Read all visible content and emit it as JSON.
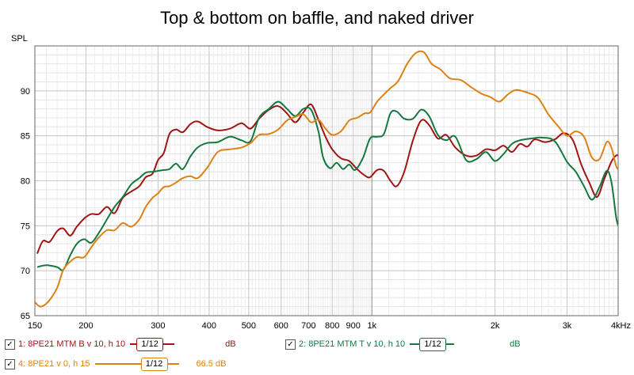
{
  "chart_data": {
    "type": "line",
    "title": "Top & bottom on baffle, and naked driver",
    "ylabel": "SPL",
    "xscale": "log",
    "xlim": [
      150,
      4000
    ],
    "ylim": [
      65,
      95
    ],
    "x_ticks": [
      {
        "value": 150,
        "label": "150"
      },
      {
        "value": 200,
        "label": "200"
      },
      {
        "value": 300,
        "label": "300"
      },
      {
        "value": 400,
        "label": "400"
      },
      {
        "value": 500,
        "label": "500"
      },
      {
        "value": 600,
        "label": "600"
      },
      {
        "value": 700,
        "label": "700"
      },
      {
        "value": 800,
        "label": "800"
      },
      {
        "value": 900,
        "label": "900"
      },
      {
        "value": 1000,
        "label": "1k"
      },
      {
        "value": 2000,
        "label": "2k"
      },
      {
        "value": 3000,
        "label": "3k"
      },
      {
        "value": 4000,
        "label": "4kHz"
      }
    ],
    "y_ticks": [
      65,
      70,
      75,
      80,
      85,
      90
    ],
    "grid": true,
    "series": [
      {
        "name": "1: 8PE21 MTM B v 10, h 10",
        "smoothing": "1/12",
        "offset": "dB",
        "color": "#a01414",
        "points": [
          [
            152,
            71.9
          ],
          [
            157,
            73.3
          ],
          [
            163,
            73.2
          ],
          [
            170,
            74.4
          ],
          [
            176,
            74.7
          ],
          [
            183,
            73.9
          ],
          [
            190,
            74.9
          ],
          [
            198,
            75.8
          ],
          [
            206,
            76.3
          ],
          [
            215,
            76.3
          ],
          [
            225,
            77.1
          ],
          [
            235,
            76.4
          ],
          [
            246,
            78.1
          ],
          [
            258,
            78.8
          ],
          [
            270,
            79.4
          ],
          [
            280,
            80.4
          ],
          [
            291,
            80.8
          ],
          [
            300,
            82.3
          ],
          [
            310,
            83.1
          ],
          [
            320,
            85.2
          ],
          [
            332,
            85.7
          ],
          [
            345,
            85.4
          ],
          [
            360,
            86.3
          ],
          [
            375,
            86.6
          ],
          [
            395,
            86.0
          ],
          [
            420,
            85.6
          ],
          [
            450,
            85.8
          ],
          [
            480,
            86.4
          ],
          [
            505,
            85.8
          ],
          [
            530,
            86.9
          ],
          [
            560,
            87.9
          ],
          [
            590,
            88.3
          ],
          [
            620,
            87.5
          ],
          [
            650,
            86.5
          ],
          [
            680,
            87.6
          ],
          [
            710,
            88.5
          ],
          [
            740,
            86.8
          ],
          [
            770,
            84.9
          ],
          [
            800,
            83.5
          ],
          [
            840,
            82.5
          ],
          [
            880,
            82.2
          ],
          [
            920,
            81.3
          ],
          [
            960,
            80.6
          ],
          [
            990,
            80.4
          ],
          [
            1030,
            81.2
          ],
          [
            1070,
            81.1
          ],
          [
            1110,
            80.0
          ],
          [
            1150,
            79.4
          ],
          [
            1200,
            81.0
          ],
          [
            1260,
            84.5
          ],
          [
            1320,
            86.7
          ],
          [
            1380,
            86.2
          ],
          [
            1450,
            84.7
          ],
          [
            1520,
            85.1
          ],
          [
            1600,
            83.7
          ],
          [
            1700,
            82.8
          ],
          [
            1800,
            82.8
          ],
          [
            1900,
            83.5
          ],
          [
            2000,
            83.4
          ],
          [
            2100,
            83.9
          ],
          [
            2200,
            83.2
          ],
          [
            2300,
            84.1
          ],
          [
            2400,
            83.8
          ],
          [
            2500,
            84.6
          ],
          [
            2650,
            84.3
          ],
          [
            2800,
            84.6
          ],
          [
            2950,
            85.3
          ],
          [
            3100,
            84.5
          ],
          [
            3250,
            81.8
          ],
          [
            3400,
            79.8
          ],
          [
            3550,
            78.2
          ],
          [
            3700,
            80.2
          ],
          [
            3850,
            82.1
          ],
          [
            3950,
            82.8
          ],
          [
            4000,
            82.8
          ]
        ]
      },
      {
        "name": "2: 8PE21 MTM T v 10, h 10",
        "smoothing": "1/12",
        "offset": "dB",
        "color": "#147840",
        "points": [
          [
            152,
            70.4
          ],
          [
            160,
            70.6
          ],
          [
            170,
            70.4
          ],
          [
            176,
            70.1
          ],
          [
            183,
            71.7
          ],
          [
            190,
            73.0
          ],
          [
            198,
            73.5
          ],
          [
            206,
            73.1
          ],
          [
            215,
            74.2
          ],
          [
            225,
            75.7
          ],
          [
            235,
            77.1
          ],
          [
            246,
            78.2
          ],
          [
            258,
            79.6
          ],
          [
            270,
            80.3
          ],
          [
            280,
            80.9
          ],
          [
            291,
            81.0
          ],
          [
            300,
            81.1
          ],
          [
            310,
            81.2
          ],
          [
            320,
            81.3
          ],
          [
            332,
            81.9
          ],
          [
            345,
            81.3
          ],
          [
            360,
            82.7
          ],
          [
            375,
            83.7
          ],
          [
            395,
            84.2
          ],
          [
            420,
            84.3
          ],
          [
            450,
            84.9
          ],
          [
            480,
            84.5
          ],
          [
            505,
            84.4
          ],
          [
            530,
            87.0
          ],
          [
            560,
            88.0
          ],
          [
            590,
            88.8
          ],
          [
            620,
            88.0
          ],
          [
            650,
            87.2
          ],
          [
            680,
            88.0
          ],
          [
            710,
            87.9
          ],
          [
            740,
            85.5
          ],
          [
            760,
            82.6
          ],
          [
            790,
            81.4
          ],
          [
            820,
            82.0
          ],
          [
            850,
            81.3
          ],
          [
            880,
            81.8
          ],
          [
            910,
            81.2
          ],
          [
            950,
            82.5
          ],
          [
            990,
            84.7
          ],
          [
            1030,
            84.9
          ],
          [
            1070,
            85.2
          ],
          [
            1110,
            87.5
          ],
          [
            1150,
            87.7
          ],
          [
            1200,
            86.9
          ],
          [
            1260,
            86.9
          ],
          [
            1320,
            87.9
          ],
          [
            1380,
            87.2
          ],
          [
            1450,
            85.1
          ],
          [
            1520,
            84.5
          ],
          [
            1600,
            84.9
          ],
          [
            1700,
            82.3
          ],
          [
            1800,
            82.4
          ],
          [
            1900,
            83.2
          ],
          [
            2000,
            82.2
          ],
          [
            2100,
            83.0
          ],
          [
            2200,
            84.1
          ],
          [
            2300,
            84.5
          ],
          [
            2450,
            84.7
          ],
          [
            2600,
            84.8
          ],
          [
            2800,
            84.4
          ],
          [
            3000,
            82.1
          ],
          [
            3150,
            81.0
          ],
          [
            3300,
            79.4
          ],
          [
            3450,
            77.9
          ],
          [
            3600,
            79.3
          ],
          [
            3750,
            81.1
          ],
          [
            3850,
            79.9
          ],
          [
            3950,
            76.1
          ],
          [
            4000,
            75.0
          ]
        ]
      },
      {
        "name": "4: 8PE21 v 0, h 15",
        "smoothing": "1/12",
        "offset": "66.5 dB",
        "color": "#dc8214",
        "points": [
          [
            150,
            66.5
          ],
          [
            155,
            66.0
          ],
          [
            162,
            66.6
          ],
          [
            170,
            68.1
          ],
          [
            176,
            70.1
          ],
          [
            183,
            71.0
          ],
          [
            190,
            71.5
          ],
          [
            198,
            71.5
          ],
          [
            206,
            72.6
          ],
          [
            215,
            73.7
          ],
          [
            225,
            74.5
          ],
          [
            235,
            74.5
          ],
          [
            246,
            75.3
          ],
          [
            258,
            74.9
          ],
          [
            270,
            75.7
          ],
          [
            280,
            77.1
          ],
          [
            291,
            78.1
          ],
          [
            300,
            78.6
          ],
          [
            310,
            79.3
          ],
          [
            320,
            79.4
          ],
          [
            332,
            79.8
          ],
          [
            345,
            80.3
          ],
          [
            360,
            80.5
          ],
          [
            375,
            80.3
          ],
          [
            395,
            81.4
          ],
          [
            420,
            83.2
          ],
          [
            450,
            83.5
          ],
          [
            480,
            83.7
          ],
          [
            505,
            84.2
          ],
          [
            530,
            85.1
          ],
          [
            560,
            85.2
          ],
          [
            590,
            85.7
          ],
          [
            620,
            86.7
          ],
          [
            650,
            87.1
          ],
          [
            680,
            87.4
          ],
          [
            710,
            86.5
          ],
          [
            740,
            86.8
          ],
          [
            770,
            85.8
          ],
          [
            800,
            85.1
          ],
          [
            840,
            85.5
          ],
          [
            880,
            86.7
          ],
          [
            920,
            87.0
          ],
          [
            960,
            87.5
          ],
          [
            990,
            87.6
          ],
          [
            1030,
            88.8
          ],
          [
            1070,
            89.6
          ],
          [
            1110,
            90.3
          ],
          [
            1160,
            91.1
          ],
          [
            1220,
            93.0
          ],
          [
            1280,
            94.2
          ],
          [
            1340,
            94.3
          ],
          [
            1400,
            93.0
          ],
          [
            1470,
            92.4
          ],
          [
            1550,
            91.4
          ],
          [
            1650,
            91.2
          ],
          [
            1750,
            90.4
          ],
          [
            1850,
            89.7
          ],
          [
            1950,
            89.3
          ],
          [
            2050,
            88.8
          ],
          [
            2150,
            89.6
          ],
          [
            2250,
            90.1
          ],
          [
            2400,
            89.8
          ],
          [
            2550,
            89.2
          ],
          [
            2700,
            87.4
          ],
          [
            2850,
            86.1
          ],
          [
            3000,
            85.0
          ],
          [
            3150,
            85.5
          ],
          [
            3300,
            84.9
          ],
          [
            3450,
            82.6
          ],
          [
            3600,
            82.4
          ],
          [
            3750,
            84.3
          ],
          [
            3850,
            83.7
          ],
          [
            3950,
            81.7
          ],
          [
            4000,
            81.3
          ]
        ]
      }
    ]
  },
  "legend": [
    {
      "checked": "✓",
      "name": "1: 8PE21 MTM B v 10, h 10",
      "smoothing": "1/12",
      "offset": "dB",
      "color": "#a01414"
    },
    {
      "checked": "✓",
      "name": "2: 8PE21 MTM T v 10, h 10",
      "smoothing": "1/12",
      "offset": "dB",
      "color": "#147840"
    },
    {
      "checked": "✓",
      "name": "4: 8PE21 v 0, h 15",
      "smoothing": "1/12",
      "offset": "66.5 dB",
      "color": "#dc8214"
    }
  ]
}
